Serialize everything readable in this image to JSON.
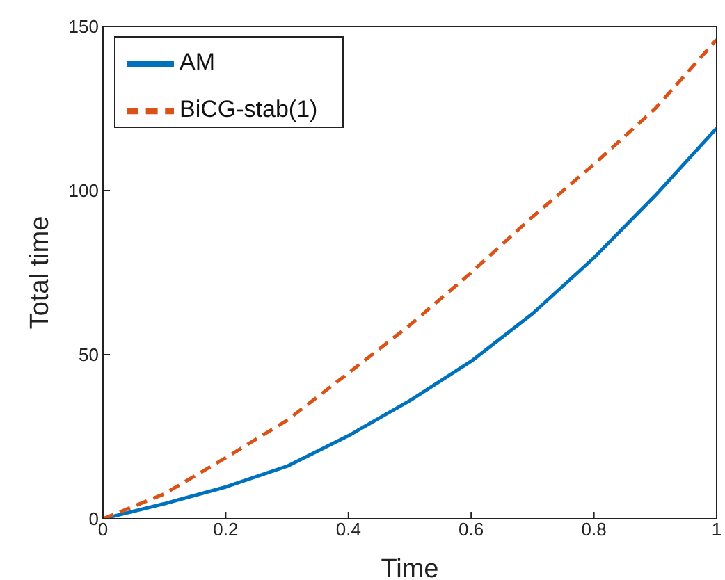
{
  "chart_data": {
    "type": "line",
    "xlabel": "Time",
    "ylabel": "Total time",
    "x": [
      0,
      0.1,
      0.2,
      0.3,
      0.4,
      0.5,
      0.6,
      0.7,
      0.8,
      0.9,
      1
    ],
    "series": [
      {
        "name": "AM",
        "color": "#0072bd",
        "line_style": "solid",
        "values": [
          0,
          4.6,
          9.7,
          16,
          25.3,
          36,
          48,
          62.5,
          79.5,
          98.5,
          119
        ]
      },
      {
        "name": "BiCG-stab(1)",
        "color": "#d95319",
        "line_style": "dashed",
        "values": [
          0,
          7.6,
          18.6,
          30,
          44.4,
          59,
          75,
          92,
          108,
          125,
          146
        ]
      }
    ],
    "xlim": [
      0,
      1
    ],
    "xticks": [
      0,
      0.2,
      0.4,
      0.6,
      0.8,
      1
    ],
    "ylim": [
      0,
      150
    ],
    "yticks": [
      0,
      50,
      100,
      150
    ],
    "grid": false,
    "legend": "top left",
    "marker": "none"
  }
}
